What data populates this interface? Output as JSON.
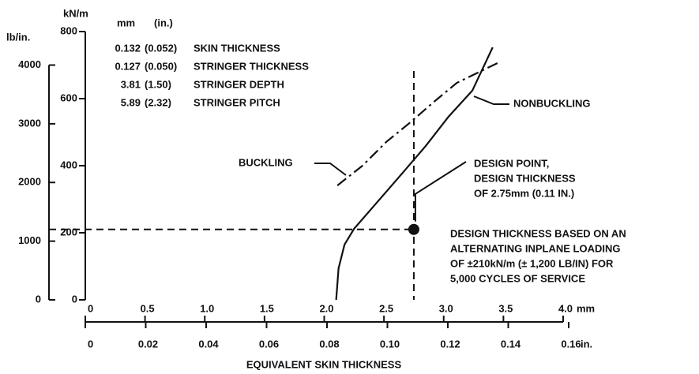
{
  "chart_data": {
    "type": "line",
    "x_label": "EQUIVALENT SKIN THICKNESS",
    "x_unit": "mm",
    "x2_unit": "in.",
    "y_unit": "kN/m",
    "y2_unit": "lb/in.",
    "xlim": [
      0,
      4.0
    ],
    "xticks": [
      0,
      0.5,
      {
        "value": 1,
        "label": "1.0"
      },
      1.5,
      {
        "value": 2,
        "label": "2.0"
      },
      2.5,
      {
        "value": 3,
        "label": "3.0"
      },
      3.5,
      {
        "value": 4,
        "label": "4.0"
      }
    ],
    "x2lim": [
      0,
      0.16
    ],
    "x2ticks": [
      0,
      0.02,
      0.04,
      0.06,
      0.08,
      {
        "value": 0.1,
        "label": "0.10"
      },
      0.12,
      0.14,
      0.16
    ],
    "ylim": [
      0,
      800
    ],
    "yticks": [
      0,
      200,
      400,
      600,
      800
    ],
    "y2lim": [
      0,
      4000
    ],
    "y2ticks": [
      0,
      1000,
      2000,
      3000,
      4000
    ],
    "series": [
      {
        "name": "NONBUCKLING",
        "color": "#111111",
        "dash": "solid",
        "x": [
          2.1,
          2.12,
          2.17,
          2.25,
          2.45,
          2.65,
          2.85,
          3.04,
          3.24,
          3.41
        ],
        "values": [
          0,
          94,
          165,
          212,
          294,
          376,
          459,
          546,
          624,
          753
        ]
      },
      {
        "name": "BUCKLING",
        "color": "#111111",
        "dash": "dashdot",
        "x": [
          2.11,
          2.32,
          2.52,
          2.72,
          2.91,
          3.11,
          3.45
        ],
        "values": [
          341,
          400,
          471,
          529,
          588,
          647,
          706
        ]
      }
    ],
    "design_point": {
      "x": 2.75,
      "y": 210
    },
    "spec_header": [
      "mm",
      "(in.)"
    ],
    "spec_rows": [
      [
        "0.132",
        "(0.052)",
        "SKIN THICKNESS"
      ],
      [
        "0.127",
        "(0.050)",
        "STRINGER THICKNESS"
      ],
      [
        "3.81",
        "(1.50)",
        "STRINGER DEPTH"
      ],
      [
        "5.89",
        "(2.32)",
        "STRINGER PITCH"
      ]
    ],
    "design_point_label": [
      "DESIGN POINT,",
      "DESIGN THICKNESS",
      "OF 2.75mm (0.11 IN.)"
    ],
    "note": [
      "DESIGN THICKNESS BASED ON AN",
      "ALTERNATING INPLANE LOADING",
      "OF ±210kN/m (± 1,200 LB/IN) FOR",
      "5,000 CYCLES OF SERVICE"
    ]
  }
}
